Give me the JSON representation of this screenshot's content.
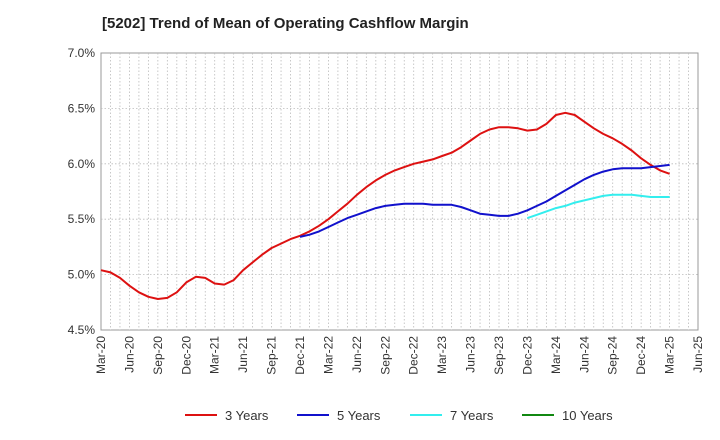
{
  "chart_data": {
    "type": "line",
    "title": "[5202]  Trend of Mean of Operating Cashflow Margin",
    "ylim": [
      4.5,
      7.0
    ],
    "y_ticks": [
      "4.5%",
      "5.0%",
      "5.5%",
      "6.0%",
      "6.5%",
      "7.0%"
    ],
    "x_ticks": [
      "Mar-20",
      "Jun-20",
      "Sep-20",
      "Dec-20",
      "Mar-21",
      "Jun-21",
      "Sep-21",
      "Dec-21",
      "Mar-22",
      "Jun-22",
      "Sep-22",
      "Dec-22",
      "Mar-23",
      "Jun-23",
      "Sep-23",
      "Dec-23",
      "Mar-24",
      "Jun-24",
      "Sep-24",
      "Dec-24",
      "Mar-25",
      "Jun-25"
    ],
    "grid": true,
    "legend_position": "bottom",
    "series": [
      {
        "name": "3 Years",
        "color": "#dd1111",
        "x": [
          "Mar-20",
          "Apr-20",
          "May-20",
          "Jun-20",
          "Jul-20",
          "Aug-20",
          "Sep-20",
          "Oct-20",
          "Nov-20",
          "Dec-20",
          "Jan-21",
          "Feb-21",
          "Mar-21",
          "Apr-21",
          "May-21",
          "Jun-21",
          "Jul-21",
          "Aug-21",
          "Sep-21",
          "Oct-21",
          "Nov-21",
          "Dec-21",
          "Jan-22",
          "Feb-22",
          "Mar-22",
          "Apr-22",
          "May-22",
          "Jun-22",
          "Jul-22",
          "Aug-22",
          "Sep-22",
          "Oct-22",
          "Nov-22",
          "Dec-22",
          "Jan-23",
          "Feb-23",
          "Mar-23",
          "Apr-23",
          "May-23",
          "Jun-23",
          "Jul-23",
          "Aug-23",
          "Sep-23",
          "Oct-23",
          "Nov-23",
          "Dec-23",
          "Jan-24",
          "Feb-24",
          "Mar-24",
          "Apr-24",
          "May-24",
          "Jun-24",
          "Jul-24",
          "Aug-24",
          "Sep-24",
          "Oct-24",
          "Nov-24",
          "Dec-24",
          "Jan-25",
          "Feb-25",
          "Mar-25"
        ],
        "values": [
          5.04,
          5.02,
          4.97,
          4.9,
          4.84,
          4.8,
          4.78,
          4.79,
          4.84,
          4.93,
          4.98,
          4.97,
          4.92,
          4.91,
          4.95,
          5.04,
          5.11,
          5.18,
          5.24,
          5.28,
          5.32,
          5.35,
          5.39,
          5.44,
          5.5,
          5.57,
          5.64,
          5.72,
          5.79,
          5.85,
          5.9,
          5.94,
          5.97,
          6.0,
          6.02,
          6.04,
          6.07,
          6.1,
          6.15,
          6.21,
          6.27,
          6.31,
          6.33,
          6.33,
          6.32,
          6.3,
          6.31,
          6.36,
          6.44,
          6.46,
          6.44,
          6.38,
          6.32,
          6.27,
          6.23,
          6.18,
          6.12,
          6.05,
          5.99,
          5.94,
          5.91
        ]
      },
      {
        "name": "5 Years",
        "color": "#1111cc",
        "x": [
          "Dec-21",
          "Jan-22",
          "Feb-22",
          "Mar-22",
          "Apr-22",
          "May-22",
          "Jun-22",
          "Jul-22",
          "Aug-22",
          "Sep-22",
          "Oct-22",
          "Nov-22",
          "Dec-22",
          "Jan-23",
          "Feb-23",
          "Mar-23",
          "Apr-23",
          "May-23",
          "Jun-23",
          "Jul-23",
          "Aug-23",
          "Sep-23",
          "Oct-23",
          "Nov-23",
          "Dec-23",
          "Jan-24",
          "Feb-24",
          "Mar-24",
          "Apr-24",
          "May-24",
          "Jun-24",
          "Jul-24",
          "Aug-24",
          "Sep-24",
          "Oct-24",
          "Nov-24",
          "Dec-24",
          "Jan-25",
          "Feb-25",
          "Mar-25"
        ],
        "values": [
          5.34,
          5.36,
          5.39,
          5.43,
          5.47,
          5.51,
          5.54,
          5.57,
          5.6,
          5.62,
          5.63,
          5.64,
          5.64,
          5.64,
          5.63,
          5.63,
          5.63,
          5.61,
          5.58,
          5.55,
          5.54,
          5.53,
          5.53,
          5.55,
          5.58,
          5.62,
          5.66,
          5.71,
          5.76,
          5.81,
          5.86,
          5.9,
          5.93,
          5.95,
          5.96,
          5.96,
          5.96,
          5.97,
          5.98,
          5.99
        ]
      },
      {
        "name": "7 Years",
        "color": "#33eeee",
        "x": [
          "Dec-23",
          "Jan-24",
          "Feb-24",
          "Mar-24",
          "Apr-24",
          "May-24",
          "Jun-24",
          "Jul-24",
          "Aug-24",
          "Sep-24",
          "Oct-24",
          "Nov-24",
          "Dec-24",
          "Jan-25",
          "Feb-25",
          "Mar-25"
        ],
        "values": [
          5.51,
          5.54,
          5.57,
          5.6,
          5.62,
          5.65,
          5.67,
          5.69,
          5.71,
          5.72,
          5.72,
          5.72,
          5.71,
          5.7,
          5.7,
          5.7
        ]
      },
      {
        "name": "10 Years",
        "color": "#118811",
        "x": [],
        "values": []
      }
    ]
  }
}
